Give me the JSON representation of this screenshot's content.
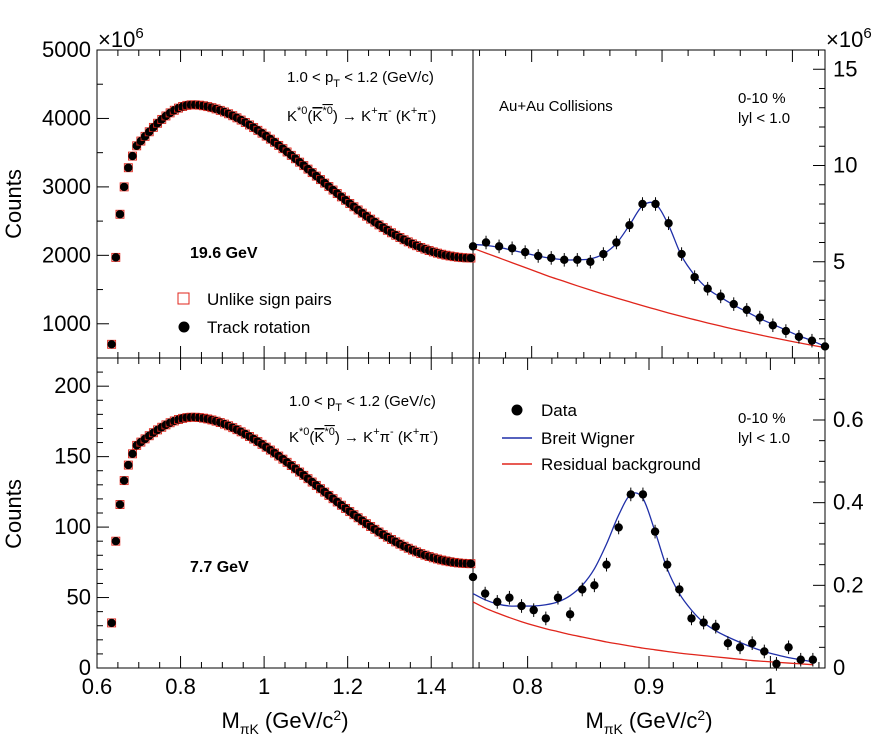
{
  "colors": {
    "unlike": "#e0251b",
    "data": "#000000",
    "bw": "#1f2fa8",
    "bg": "#e0251b"
  },
  "chart_data": [
    {
      "id": "top-left",
      "type": "scatter",
      "energy": "19.6 GeV",
      "exponent_label": "×10",
      "exponent_power": "6",
      "xlim": [
        0.6,
        1.5
      ],
      "ylim": [
        500,
        5000
      ],
      "xticks": [
        0.6,
        0.8,
        1.0,
        1.2,
        1.4
      ],
      "yticks": [
        1000,
        2000,
        3000,
        4000,
        5000
      ],
      "ytick_labels": [
        "1000",
        "2000",
        "3000",
        "4000",
        "5000"
      ],
      "ylabel": "Counts",
      "annotations": {
        "pt": "1.0 < p",
        "pt_sub": "T",
        "pt_tail": " < 1.2 (GeV/c)",
        "decay": "K*0(K*0) → K+π- (K+π-)"
      },
      "legend": [
        "Unlike sign pairs",
        "Track rotation"
      ],
      "peak_x": 0.83,
      "peak_y": 4200,
      "end_y": 1960,
      "points_x": [
        0.635,
        0.645,
        0.655,
        0.665,
        0.675,
        0.685,
        0.695
      ],
      "points_y": [
        700,
        1970,
        2600,
        3000,
        3280,
        3450,
        3600
      ]
    },
    {
      "id": "top-right",
      "type": "scatter",
      "ytick_labels": [
        "5",
        "10",
        "15"
      ],
      "yticks": [
        5,
        10,
        15
      ],
      "xlim": [
        0.755,
        1.025
      ],
      "ylim": [
        0,
        16
      ],
      "exponent_label": "×10",
      "exponent_power": "6",
      "annotations": {
        "system": "Au+Au Collisions",
        "centrality": "0-10 %",
        "rapidity": "lyl < 1.0"
      },
      "x": [
        0.755,
        0.765,
        0.775,
        0.785,
        0.795,
        0.805,
        0.815,
        0.825,
        0.835,
        0.845,
        0.855,
        0.865,
        0.875,
        0.885,
        0.895,
        0.905,
        0.915,
        0.925,
        0.935,
        0.945,
        0.955,
        0.965,
        0.975,
        0.985,
        0.995,
        1.005,
        1.015,
        1.025
      ],
      "y": [
        5.8,
        6.0,
        5.8,
        5.7,
        5.5,
        5.3,
        5.2,
        5.1,
        5.1,
        5.0,
        5.4,
        6.0,
        6.9,
        8.0,
        8.0,
        7.0,
        5.4,
        4.2,
        3.6,
        3.2,
        2.8,
        2.5,
        2.1,
        1.7,
        1.4,
        1.1,
        0.9,
        0.6
      ],
      "bw": [
        5.9,
        5.85,
        5.75,
        5.6,
        5.45,
        5.3,
        5.18,
        5.1,
        5.1,
        5.15,
        5.4,
        5.95,
        6.9,
        7.9,
        8.0,
        6.9,
        5.3,
        4.3,
        3.6,
        3.15,
        2.75,
        2.4,
        2.05,
        1.75,
        1.45,
        1.15,
        0.9,
        0.6
      ],
      "bg": [
        5.7,
        5.45,
        5.2,
        4.95,
        4.7,
        4.45,
        4.2,
        3.98,
        3.75,
        3.53,
        3.32,
        3.12,
        2.92,
        2.72,
        2.53,
        2.34,
        2.16,
        1.99,
        1.82,
        1.66,
        1.5,
        1.35,
        1.2,
        1.06,
        0.92,
        0.79,
        0.66,
        0.54
      ],
      "xlabel": "",
      "ylabel": ""
    },
    {
      "id": "bottom-left",
      "type": "scatter",
      "energy": "7.7 GeV",
      "xlim": [
        0.6,
        1.5
      ],
      "ylim": [
        0,
        220
      ],
      "xticks": [
        0.6,
        0.8,
        1.0,
        1.2,
        1.4
      ],
      "xtick_labels": [
        "0.6",
        "0.8",
        "1",
        "1.2",
        "1.4"
      ],
      "yticks": [
        0,
        50,
        100,
        150,
        200
      ],
      "ytick_labels": [
        "0",
        "50",
        "100",
        "150",
        "200"
      ],
      "ylabel": "Counts",
      "xlabel": "MπK (GeV/c2)",
      "annotations": {
        "pt": "1.0 < p",
        "pt_sub": "T",
        "pt_tail": " < 1.2 (GeV/c)",
        "decay": "K*0(K*0) → K+π- (K+π-)"
      },
      "peak_x": 0.83,
      "peak_y": 178,
      "end_y": 74,
      "points_x": [
        0.635,
        0.645,
        0.655,
        0.665,
        0.675,
        0.685,
        0.695
      ],
      "points_y": [
        32,
        90,
        116,
        133,
        144,
        152,
        158
      ]
    },
    {
      "id": "bottom-right",
      "type": "scatter",
      "xlim": [
        0.755,
        1.045
      ],
      "ylim": [
        0,
        0.75
      ],
      "xticks": [
        0.8,
        0.9,
        1.0
      ],
      "xtick_labels": [
        "0.8",
        "0.9",
        "1"
      ],
      "yticks": [
        0,
        0.2,
        0.4,
        0.6
      ],
      "ytick_labels": [
        "0",
        "0.2",
        "0.4",
        "0.6"
      ],
      "xlabel": "MπK (GeV/c2)",
      "ylabel": "",
      "annotations": {
        "centrality": "0-10 %",
        "rapidity": "lyl < 1.0"
      },
      "legend": [
        "Data",
        "Breit Wigner",
        "Residual background"
      ],
      "x": [
        0.755,
        0.765,
        0.775,
        0.785,
        0.795,
        0.805,
        0.815,
        0.825,
        0.835,
        0.845,
        0.855,
        0.865,
        0.875,
        0.885,
        0.895,
        0.905,
        0.915,
        0.925,
        0.935,
        0.945,
        0.955,
        0.965,
        0.975,
        0.985,
        0.995,
        1.005,
        1.015,
        1.025,
        1.035
      ],
      "y": [
        0.22,
        0.18,
        0.16,
        0.17,
        0.15,
        0.14,
        0.12,
        0.17,
        0.13,
        0.19,
        0.2,
        0.25,
        0.34,
        0.42,
        0.42,
        0.33,
        0.25,
        0.19,
        0.12,
        0.11,
        0.1,
        0.06,
        0.05,
        0.06,
        0.04,
        0.01,
        0.05,
        0.02,
        0.02
      ],
      "bw": [
        0.18,
        0.165,
        0.155,
        0.15,
        0.15,
        0.15,
        0.153,
        0.16,
        0.175,
        0.2,
        0.24,
        0.3,
        0.37,
        0.42,
        0.41,
        0.33,
        0.24,
        0.18,
        0.14,
        0.11,
        0.09,
        0.075,
        0.062,
        0.05,
        0.04,
        0.032,
        0.025,
        0.02,
        0.015
      ],
      "bg": [
        0.16,
        0.145,
        0.133,
        0.122,
        0.112,
        0.103,
        0.095,
        0.088,
        0.081,
        0.075,
        0.069,
        0.063,
        0.058,
        0.053,
        0.048,
        0.044,
        0.04,
        0.036,
        0.033,
        0.03,
        0.027,
        0.024,
        0.021,
        0.018,
        0.016,
        0.014,
        0.012,
        0.01,
        0.008
      ]
    }
  ],
  "xtick_labels_bottom_left": [
    "0.6",
    "0.8",
    "1",
    "1.2",
    "1.4"
  ],
  "xtick_labels_bottom_right": [
    "0.8",
    "0.9",
    "1"
  ]
}
